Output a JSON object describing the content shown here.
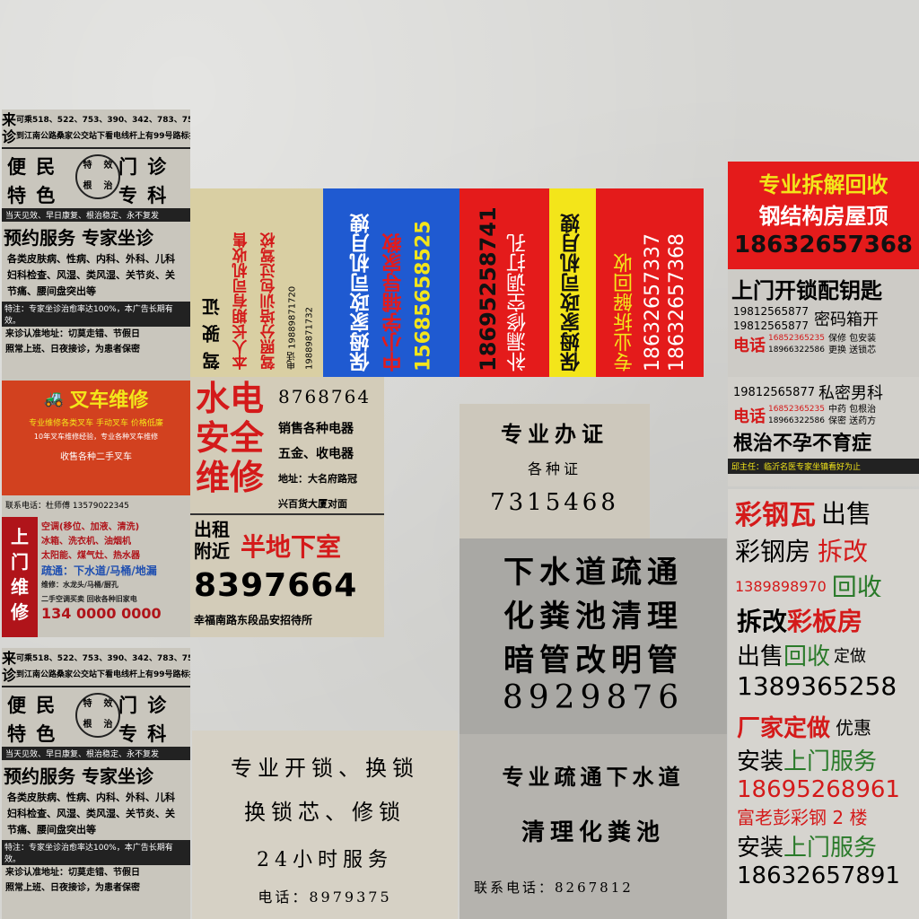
{
  "clinic_top": {
    "lai": "来",
    "zhen": "诊",
    "bus1": "可乘518、522、753、390、342、783、754、821路车",
    "bus2": "到江南公路桑家公交站下看电线杆上有99号路标指引",
    "h1a": "便 民",
    "h1b": "门 诊",
    "h2a": "特 色",
    "h2b": "专 科",
    "seal": [
      "特",
      "效",
      "根",
      "治"
    ],
    "slogan": "当天见效、早日康复、根治稳定、永不复发",
    "big": "预约服务 专家坐诊",
    "l1": "各类皮肤病、性病、内科、外科、儿科",
    "l2": "妇科检查、风湿、类风湿、关节炎、关",
    "l3": "节痛、腰间盘突出等",
    "special": "特注：专家坐诊治愈率达100%，本广告长期有效。",
    "addr1": "来诊认准地址：切莫走错、节假日",
    "addr2": "照常上班、日夜接诊，为患者保密"
  },
  "driver": {
    "title": "驾驶证",
    "l1": "本人长期有司机收售",
    "l2": "驾照分培训包过驾校",
    "phone1": "电话 19889871720",
    "phone2": "19889871732"
  },
  "nanny_blue": {
    "l1": "保姆家政司机月嫂",
    "l2": "中小学辅导家教",
    "phone": "15685658525"
  },
  "repair_red": {
    "phone": "18695258741",
    "l1": "补漏修空调打孔"
  },
  "nanny_yellow": {
    "l1": "保姆家政司机月嫂"
  },
  "dismantle_red": {
    "l1": "专业拆解回收",
    "phone1": "18632657337",
    "phone2": "18632657368"
  },
  "right_top": {
    "l1": "专业拆解回收",
    "l2": "钢结构房屋顶",
    "phone": "18632657368"
  },
  "locksmith_right": {
    "title": "上门开锁配钥匙",
    "p1": "19812565877",
    "p2": "19812565877",
    "pw": "密码箱开",
    "tel": "电话",
    "p3": "16852365235",
    "p4": "18966322586",
    "t1": "保修 包安装",
    "t2": "更换 送锁芯"
  },
  "men_health": {
    "p1": "19812565877",
    "t1": "私密男科",
    "tel": "电话",
    "p2": "16852365235",
    "p3": "18966322586",
    "t2": "中药 包根治",
    "t3": "保密 送药方",
    "big": "根治不孕不育症",
    "doctor": "邱主任：临沂名医专家坐镇看好为止"
  },
  "forklift": {
    "title": "叉车维修",
    "l1": "专业维修各类叉车 手动叉车 价格低廉",
    "l2": "10年叉车维修经验，专业各种叉车维修",
    "l3": "收售各种二手叉车",
    "contact": "联系电话：杜师傅  13579022345"
  },
  "utilities": {
    "big": [
      "水电",
      "安全",
      "维修"
    ],
    "phone": "8768764",
    "r1": "销售各种电器",
    "r2": "五金、收电器",
    "r3": "地址：大名府路冠",
    "r4": "兴百货大厦对面",
    "rent1": "出租",
    "rent2": "附近",
    "basement": "半地下室",
    "phone2": "8397664",
    "addr": "幸福南路东段品安招待所"
  },
  "certificate": {
    "l1": "专业办证",
    "l2": "各种证",
    "phone": "7315468"
  },
  "home_repair": {
    "side": [
      "上",
      "门",
      "维",
      "修"
    ],
    "l1": "空调(移位、加液、清洗)",
    "l2": "冰箱、洗衣机、油烟机",
    "l3": "太阳能、煤气灶、热水器",
    "l4": "疏通：下水道/马桶/地漏",
    "l5": "维修：水龙头/马桶/厨孔",
    "l6": "二手空调买卖  回收各种旧家电",
    "phone": "134 0000 0000"
  },
  "sewer": {
    "l1": "下水道疏通",
    "l2": "化粪池清理",
    "l3": "暗管改明管",
    "phone": "8929876"
  },
  "steel": {
    "a": "彩钢瓦",
    "b": "出售",
    "c": "彩钢房",
    "d": "拆改",
    "phone": "13898989​70",
    "e": "回收"
  },
  "panel": {
    "a": "拆改",
    "b": "彩板房",
    "c": "出售",
    "d": "回收",
    "e": "定做",
    "phone": "1389365258"
  },
  "factory": {
    "a": "厂家定做",
    "b": "优惠",
    "c": "安装",
    "d": "上门服务",
    "phone1": "18695268961",
    "e": "富老彭彩钢 2 楼",
    "f": "安装",
    "g": "上门服务",
    "phone2": "18632657891"
  },
  "lock_bottom": {
    "l1": "专业开锁、换锁",
    "l2": "换锁芯、修锁",
    "l3": "24小时服务",
    "tel": "电话：8979375"
  },
  "sewer2": {
    "l1": "专业疏通下水道",
    "l2": "清理化粪池",
    "tel": "联系电话：8267812"
  },
  "colors": {
    "red": "#e41b1b",
    "blue": "#1f5ad1",
    "yellow": "#f3e51a",
    "darkred": "#b0141a",
    "green": "#2a7a2a"
  }
}
